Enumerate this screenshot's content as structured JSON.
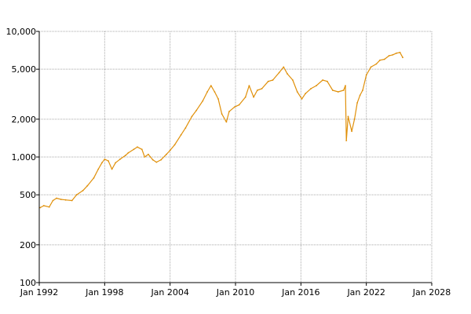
{
  "chart_data": {
    "type": "line",
    "title": "",
    "xlabel": "",
    "ylabel": "",
    "scale_y": "log",
    "grid": true,
    "legend": "none",
    "xlim": [
      "1992-01",
      "2028-01"
    ],
    "ylim": [
      100,
      10000
    ],
    "x_ticks": [
      "Jan 1992",
      "Jan 1998",
      "Jan 2004",
      "Jan 2010",
      "Jan 2016",
      "Jan 2022",
      "Jan 2028"
    ],
    "y_ticks": [
      {
        "value": 100,
        "label": "100"
      },
      {
        "value": 200,
        "label": "200"
      },
      {
        "value": 500,
        "label": "500"
      },
      {
        "value": 1000,
        "label": "1,000"
      },
      {
        "value": 2000,
        "label": "2,000"
      },
      {
        "value": 5000,
        "label": "5,000"
      },
      {
        "value": 10000,
        "label": "10,000"
      }
    ],
    "series": [
      {
        "name": "",
        "color": "#e0900a",
        "points": [
          [
            "1992-02",
            395
          ],
          [
            "1992-06",
            410
          ],
          [
            "1992-12",
            400
          ],
          [
            "1993-04",
            450
          ],
          [
            "1993-08",
            470
          ],
          [
            "1994-01",
            460
          ],
          [
            "1994-06",
            455
          ],
          [
            "1995-01",
            450
          ],
          [
            "1995-06",
            500
          ],
          [
            "1996-01",
            540
          ],
          [
            "1996-06",
            590
          ],
          [
            "1997-01",
            680
          ],
          [
            "1997-06",
            800
          ],
          [
            "1997-10",
            900
          ],
          [
            "1998-01",
            960
          ],
          [
            "1998-05",
            930
          ],
          [
            "1998-09",
            800
          ],
          [
            "1999-01",
            900
          ],
          [
            "1999-06",
            960
          ],
          [
            "1999-12",
            1030
          ],
          [
            "2000-03",
            1080
          ],
          [
            "2000-09",
            1150
          ],
          [
            "2001-01",
            1200
          ],
          [
            "2001-06",
            1150
          ],
          [
            "2001-09",
            1000
          ],
          [
            "2002-01",
            1050
          ],
          [
            "2002-06",
            950
          ],
          [
            "2002-10",
            910
          ],
          [
            "2003-03",
            950
          ],
          [
            "2003-09",
            1050
          ],
          [
            "2004-01",
            1130
          ],
          [
            "2004-06",
            1250
          ],
          [
            "2005-01",
            1500
          ],
          [
            "2005-06",
            1700
          ],
          [
            "2006-01",
            2100
          ],
          [
            "2006-06",
            2350
          ],
          [
            "2007-01",
            2800
          ],
          [
            "2007-06",
            3300
          ],
          [
            "2007-10",
            3700
          ],
          [
            "2008-02",
            3300
          ],
          [
            "2008-06",
            2900
          ],
          [
            "2008-10",
            2200
          ],
          [
            "2009-03",
            1900
          ],
          [
            "2009-06",
            2300
          ],
          [
            "2009-12",
            2500
          ],
          [
            "2010-05",
            2600
          ],
          [
            "2010-12",
            3000
          ],
          [
            "2011-04",
            3700
          ],
          [
            "2011-09",
            3000
          ],
          [
            "2012-01",
            3400
          ],
          [
            "2012-06",
            3500
          ],
          [
            "2013-01",
            4000
          ],
          [
            "2013-06",
            4100
          ],
          [
            "2014-01",
            4700
          ],
          [
            "2014-06",
            5200
          ],
          [
            "2014-10",
            4600
          ],
          [
            "2015-04",
            4100
          ],
          [
            "2015-09",
            3300
          ],
          [
            "2016-02",
            2900
          ],
          [
            "2016-06",
            3200
          ],
          [
            "2016-12",
            3500
          ],
          [
            "2017-06",
            3700
          ],
          [
            "2018-01",
            4100
          ],
          [
            "2018-06",
            4000
          ],
          [
            "2018-12",
            3400
          ],
          [
            "2019-06",
            3300
          ],
          [
            "2019-12",
            3400
          ],
          [
            "2020-02",
            3700
          ],
          [
            "2020-03",
            1350
          ],
          [
            "2020-05",
            2100
          ],
          [
            "2020-09",
            1600
          ],
          [
            "2020-12",
            2000
          ],
          [
            "2021-03",
            2700
          ],
          [
            "2021-06",
            3100
          ],
          [
            "2021-09",
            3400
          ],
          [
            "2022-01",
            4500
          ],
          [
            "2022-06",
            5200
          ],
          [
            "2022-12",
            5500
          ],
          [
            "2023-04",
            5900
          ],
          [
            "2023-09",
            6000
          ],
          [
            "2024-02",
            6400
          ],
          [
            "2024-06",
            6500
          ],
          [
            "2024-10",
            6700
          ],
          [
            "2025-02",
            6800
          ],
          [
            "2025-05",
            6200
          ]
        ]
      }
    ]
  }
}
